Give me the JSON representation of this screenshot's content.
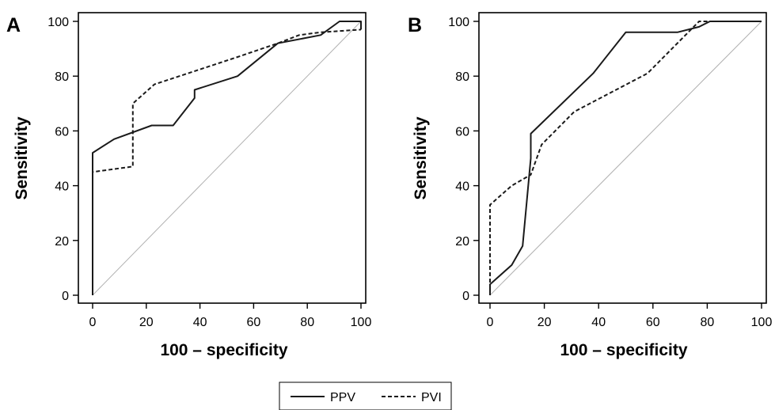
{
  "chart_data": [
    {
      "type": "line",
      "panel_label": "A",
      "xlabel": "100 – specificity",
      "ylabel": "Sensitivity",
      "xlim": [
        0,
        100
      ],
      "ylim": [
        0,
        100
      ],
      "xticks": [
        0,
        20,
        40,
        60,
        80,
        100
      ],
      "yticks": [
        0,
        20,
        40,
        60,
        80,
        100
      ],
      "reference_line": {
        "x": [
          0,
          100
        ],
        "y": [
          0,
          100
        ]
      },
      "series": [
        {
          "name": "PPV",
          "style": "solid",
          "x": [
            0,
            0,
            0,
            8,
            22,
            30,
            38,
            38,
            54,
            69,
            85,
            92,
            100,
            100
          ],
          "y": [
            0,
            40,
            52,
            57,
            62,
            62,
            72,
            75,
            80,
            92,
            95,
            100,
            100,
            97
          ]
        },
        {
          "name": "PVI",
          "style": "dashed",
          "x": [
            0,
            0,
            15,
            15,
            23,
            54,
            69,
            77,
            85,
            100
          ],
          "y": [
            0,
            45,
            47,
            70,
            77,
            87,
            92,
            95,
            96,
            97
          ]
        }
      ]
    },
    {
      "type": "line",
      "panel_label": "B",
      "xlabel": "100 – specificity",
      "ylabel": "Sensitivity",
      "xlim": [
        0,
        100
      ],
      "ylim": [
        0,
        100
      ],
      "xticks": [
        0,
        20,
        40,
        60,
        80,
        100
      ],
      "yticks": [
        0,
        20,
        40,
        60,
        80,
        100
      ],
      "reference_line": {
        "x": [
          0,
          100
        ],
        "y": [
          0,
          100
        ]
      },
      "series": [
        {
          "name": "PPV",
          "style": "solid",
          "x": [
            0,
            0,
            8,
            12,
            15,
            15,
            38,
            50,
            69,
            77,
            81,
            100
          ],
          "y": [
            0,
            4,
            11,
            18,
            50,
            59,
            81,
            96,
            96,
            98,
            100,
            100
          ]
        },
        {
          "name": "PVI",
          "style": "dashed",
          "x": [
            0,
            0,
            8,
            15,
            19,
            31,
            58,
            77,
            81,
            100
          ],
          "y": [
            0,
            33,
            40,
            44,
            55,
            67,
            81,
            100,
            100,
            100
          ]
        }
      ]
    }
  ],
  "legend": {
    "placement": "bottom-center",
    "items": [
      {
        "label": "PPV",
        "style": "solid"
      },
      {
        "label": "PVI",
        "style": "dashed"
      }
    ]
  },
  "colors": {
    "series": "#1a1a1a",
    "reference": "#b0b0b0",
    "axis": "#000000"
  }
}
